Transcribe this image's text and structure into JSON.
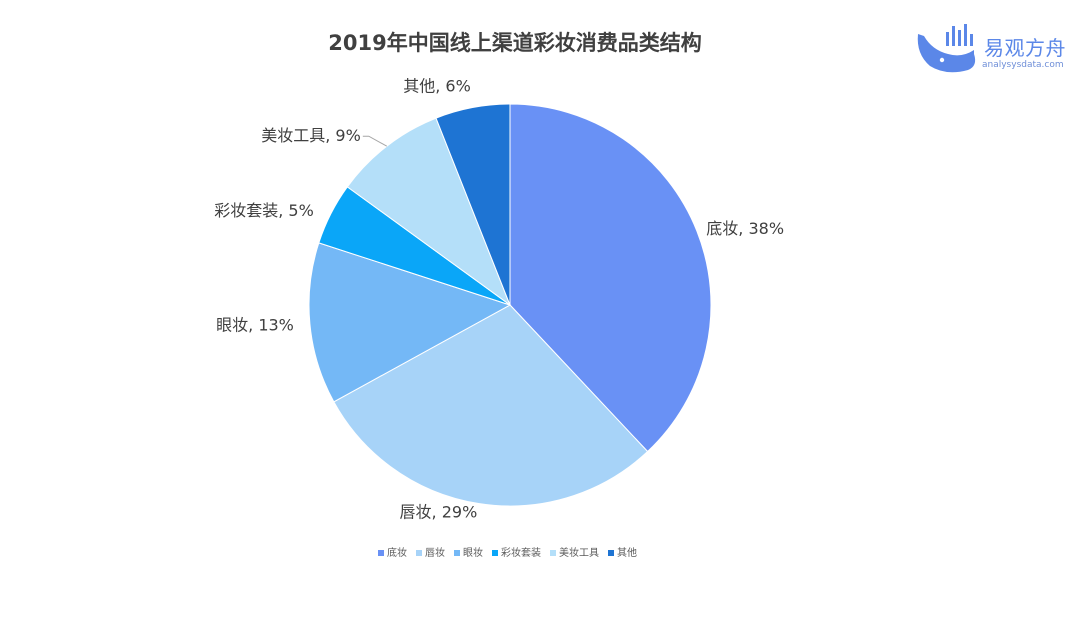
{
  "brand": {
    "name": "易观方舟",
    "url": "analysysdata.com"
  },
  "chart_data": {
    "type": "pie",
    "title": "2019年中国线上渠道彩妆消费品类结构",
    "slices": [
      {
        "label": "底妆",
        "value": 38,
        "color": "#6991f5"
      },
      {
        "label": "唇妆",
        "value": 29,
        "color": "#a7d3f8"
      },
      {
        "label": "眼妆",
        "value": 13,
        "color": "#74b8f6"
      },
      {
        "label": "彩妆套装",
        "value": 5,
        "color": "#0aa6f8"
      },
      {
        "label": "美妆工具",
        "value": 9,
        "color": "#b4dff9"
      },
      {
        "label": "其他",
        "value": 6,
        "color": "#1e74d3"
      }
    ],
    "data_labels": [
      "底妆, 38%",
      "唇妆, 29%",
      "眼妆, 13%",
      "彩妆套装, 5%",
      "美妆工具, 9%",
      "其他, 6%"
    ],
    "legend_position": "bottom-center",
    "legend": [
      "底妆",
      "唇妆",
      "眼妆",
      "彩妆套装",
      "美妆工具",
      "其他"
    ]
  }
}
